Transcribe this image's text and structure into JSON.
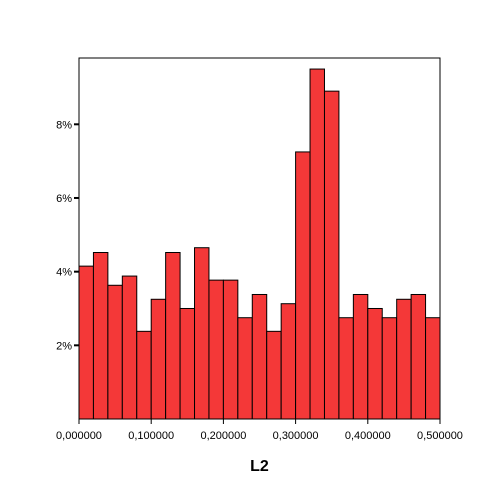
{
  "chart_data": {
    "type": "bar",
    "subtype": "histogram",
    "xlabel": "L2",
    "ylabel": "",
    "bin_start": 0.0,
    "bin_width": 0.02,
    "x_range": [
      0.0,
      0.5
    ],
    "ylim": [
      0,
      9.8
    ],
    "values": [
      4.15,
      4.52,
      3.63,
      3.88,
      2.38,
      3.25,
      4.52,
      3.0,
      4.65,
      3.77,
      3.77,
      2.75,
      3.38,
      2.38,
      3.13,
      7.25,
      9.5,
      8.9,
      2.75,
      3.38,
      3.0,
      2.75,
      3.25,
      3.38,
      2.75
    ],
    "x_ticks": [
      {
        "value": 0.0,
        "label": "0,000000"
      },
      {
        "value": 0.1,
        "label": "0,100000"
      },
      {
        "value": 0.2,
        "label": "0,200000"
      },
      {
        "value": 0.3,
        "label": "0,300000"
      },
      {
        "value": 0.4,
        "label": "0,400000"
      },
      {
        "value": 0.5,
        "label": "0,500000"
      }
    ],
    "y_ticks": [
      {
        "value": 2,
        "label": "2%"
      },
      {
        "value": 4,
        "label": "4%"
      },
      {
        "value": 6,
        "label": "6%"
      },
      {
        "value": 8,
        "label": "8%"
      }
    ],
    "bar_color": "#f43838",
    "bar_edge_color": "#000000",
    "grid": false,
    "legend": "none"
  }
}
